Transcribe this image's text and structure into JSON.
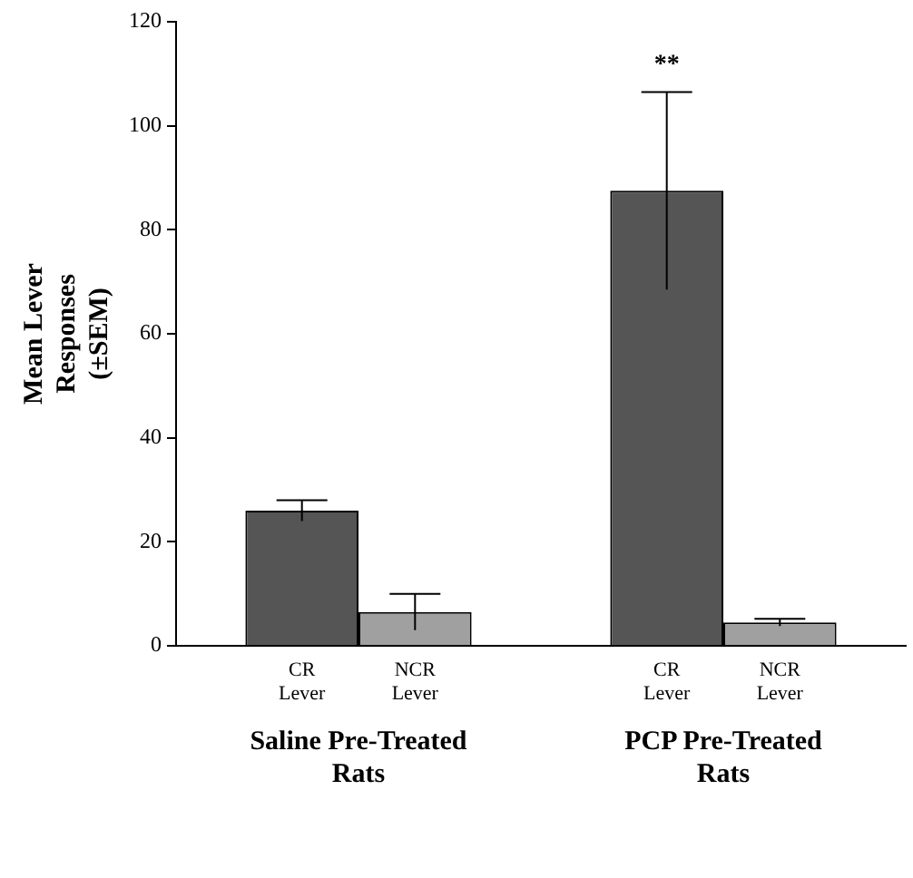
{
  "chart_data": {
    "type": "bar",
    "ylabel": "Mean Lever Responses (±SEM)",
    "categories": [
      "Saline Pre-Treated Rats",
      "PCP Pre-Treated Rats"
    ],
    "series": [
      {
        "name": "CR Lever",
        "color": "#555555",
        "values": [
          26,
          87.5
        ],
        "errors": [
          2,
          19
        ]
      },
      {
        "name": "NCR Lever",
        "color": "#a0a0a0",
        "values": [
          6.5,
          4.5
        ],
        "errors": [
          3.5,
          0.7
        ]
      }
    ],
    "ylim": [
      0,
      120
    ],
    "yticks": [
      0,
      20,
      40,
      60,
      80,
      100,
      120
    ],
    "grid": false,
    "legend": false,
    "annotations": [
      "**"
    ]
  }
}
